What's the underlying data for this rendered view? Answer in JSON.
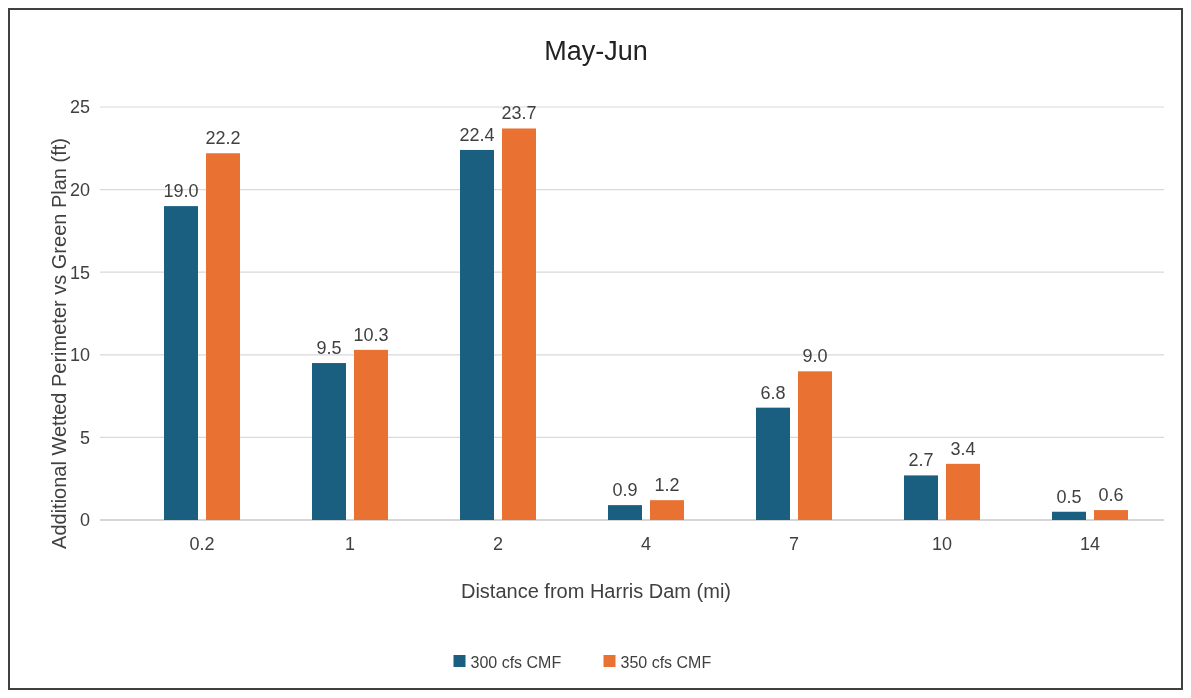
{
  "chart_data": {
    "type": "bar",
    "title": "May-Jun",
    "xlabel": "Distance from Harris Dam (mi)",
    "ylabel": "Additional Wetted Perimeter vs Green Plan (ft)",
    "categories": [
      "0.2",
      "1",
      "2",
      "4",
      "7",
      "10",
      "14"
    ],
    "series": [
      {
        "name": "300 cfs CMF",
        "color": "#1a5e80",
        "values": [
          19.0,
          9.5,
          22.4,
          0.9,
          6.8,
          2.7,
          0.5
        ],
        "value_labels": [
          "19.0",
          "9.5",
          "22.4",
          "0.9",
          "6.8",
          "2.7",
          "0.5"
        ]
      },
      {
        "name": "350 cfs CMF",
        "color": "#e97132",
        "values": [
          22.2,
          10.3,
          23.7,
          1.2,
          9.0,
          3.4,
          0.6
        ],
        "value_labels": [
          "22.2",
          "10.3",
          "23.7",
          "1.2",
          "9.0",
          "3.4",
          "0.6"
        ]
      }
    ],
    "ylim": [
      0,
      25
    ],
    "yticks": [
      0,
      5,
      10,
      15,
      20,
      25
    ],
    "grid": "y",
    "legend": "bottom"
  }
}
